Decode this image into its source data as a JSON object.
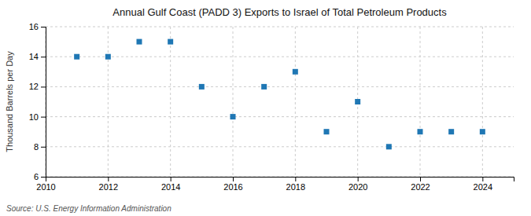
{
  "chart_data": {
    "type": "scatter",
    "title": "Annual Gulf Coast (PADD 3) Exports to Israel of Total Petroleum Products",
    "ylabel": "Thousand Barrels per Day",
    "annotations": [
      "Source: U.S. Energy Information Administration"
    ],
    "x": [
      2011,
      2012,
      2013,
      2014,
      2015,
      2016,
      2017,
      2018,
      2019,
      2020,
      2021,
      2022,
      2023,
      2024
    ],
    "values": [
      14,
      14,
      15,
      15,
      12,
      10,
      12,
      13,
      9,
      11,
      8,
      9,
      9,
      9
    ],
    "xlim": [
      2010,
      2025
    ],
    "ylim": [
      6,
      16
    ],
    "xticks": [
      2010,
      2012,
      2014,
      2016,
      2018,
      2020,
      2022,
      2024
    ],
    "yticks": [
      6,
      8,
      10,
      12,
      14,
      16
    ],
    "grid": true,
    "marker": "square"
  }
}
